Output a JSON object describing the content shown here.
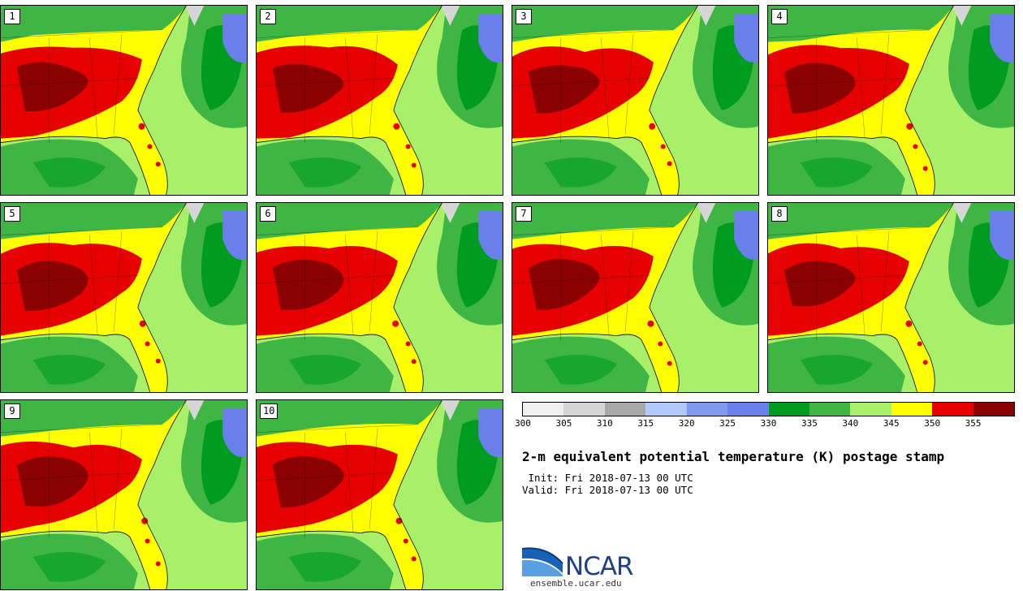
{
  "members": [
    "1",
    "2",
    "3",
    "4",
    "5",
    "6",
    "7",
    "8",
    "9",
    "10"
  ],
  "colorbar": {
    "colors": [
      "#f0f0f0",
      "#d6d6d6",
      "#a8a8a8",
      "#b4c8f8",
      "#7f99ef",
      "#6a7fea",
      "#009c22",
      "#3fb544",
      "#a9f06a",
      "#ffff00",
      "#e60000",
      "#8b0000"
    ],
    "ticks": [
      "300",
      "305",
      "310",
      "315",
      "320",
      "325",
      "330",
      "335",
      "340",
      "345",
      "350",
      "355"
    ]
  },
  "title": "2-m equivalent potential temperature (K) postage stamp",
  "init_text": " Init: Fri 2018-07-13 00 UTC",
  "valid_text": "Valid: Fri 2018-07-13 00 UTC",
  "logo": {
    "name": "NCAR",
    "url": "ensemble.ucar.edu"
  },
  "palette": {
    "ocean_light": "#a9f06a",
    "ocean_mid": "#3fb544",
    "ocean_dark": "#009c22",
    "land_warm": "#ffff00",
    "land_hot": "#e60000",
    "land_hotter": "#8b0000",
    "blue_patch": "#6a7fea",
    "coast_line": "#000000"
  }
}
